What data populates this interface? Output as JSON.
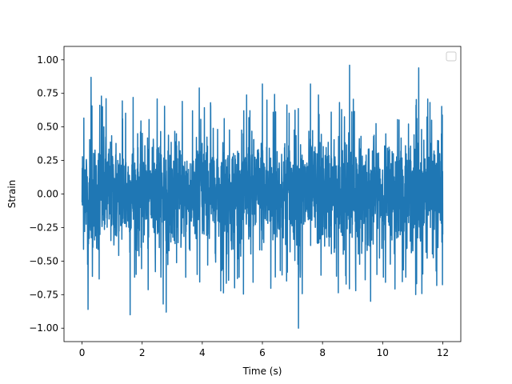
{
  "chart_data": {
    "type": "line",
    "title": "",
    "xlabel": "Time (s)",
    "ylabel": "Strain",
    "xlim": [
      -0.6,
      12.6
    ],
    "ylim": [
      -1.1,
      1.1
    ],
    "xticks": [
      0,
      2,
      4,
      6,
      8,
      10,
      12
    ],
    "xtick_labels": [
      "0",
      "2",
      "4",
      "6",
      "8",
      "10",
      "12"
    ],
    "yticks": [
      -1.0,
      -0.75,
      -0.5,
      -0.25,
      0.0,
      0.25,
      0.5,
      0.75,
      1.0
    ],
    "ytick_labels": [
      "−1.00",
      "−0.75",
      "−0.50",
      "−0.25",
      "0.00",
      "0.25",
      "0.50",
      "0.75",
      "1.00"
    ],
    "grid": false,
    "legend": {
      "placement": "top-right",
      "entries": []
    },
    "series": [
      {
        "color": "#1f77b4",
        "description": "Noise-like strain signal from t=0 to t=12 s, dense band between about -0.5 and 0.5 with spikes reaching about ±1.0",
        "x_range": [
          0,
          12
        ],
        "band": [
          -0.5,
          0.5
        ],
        "peaks": [
          {
            "x": 0.3,
            "y": 0.87
          },
          {
            "x": 0.8,
            "y": 0.71
          },
          {
            "x": 1.7,
            "y": 0.72
          },
          {
            "x": 2.8,
            "y": 0.98
          },
          {
            "x": 3.9,
            "y": 0.79
          },
          {
            "x": 6.0,
            "y": 0.82
          },
          {
            "x": 7.6,
            "y": 0.82
          },
          {
            "x": 8.9,
            "y": 0.96
          },
          {
            "x": 9.1,
            "y": 1.0
          },
          {
            "x": 11.2,
            "y": 0.94
          }
        ],
        "troughs": [
          {
            "x": 0.2,
            "y": -0.86
          },
          {
            "x": 1.6,
            "y": -0.9
          },
          {
            "x": 2.7,
            "y": -0.82
          },
          {
            "x": 2.8,
            "y": -0.88
          },
          {
            "x": 7.2,
            "y": -1.0
          },
          {
            "x": 9.6,
            "y": -0.8
          },
          {
            "x": 11.1,
            "y": -0.75
          }
        ]
      }
    ]
  }
}
